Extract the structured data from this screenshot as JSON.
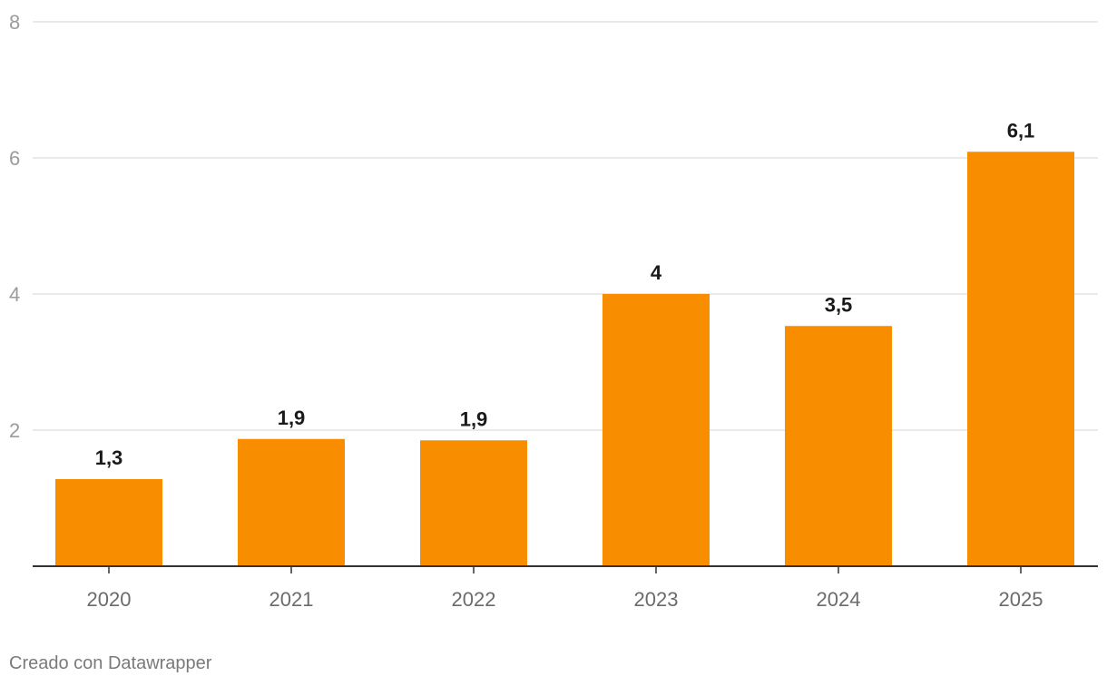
{
  "chart_data": {
    "type": "bar",
    "categories": [
      "2020",
      "2021",
      "2022",
      "2023",
      "2024",
      "2025"
    ],
    "values": [
      1.28,
      1.87,
      1.85,
      4.0,
      3.53,
      6.09
    ],
    "data_labels": [
      "1,3",
      "1,9",
      "1,9",
      "4",
      "3,5",
      "6,1"
    ],
    "y_ticks": [
      2,
      4,
      6,
      8
    ],
    "ylim": [
      0,
      8
    ],
    "grid": true,
    "title": "",
    "xlabel": "",
    "ylabel": "",
    "bar_color": "#f88d00"
  },
  "footer": {
    "credit": "Creado con Datawrapper"
  }
}
